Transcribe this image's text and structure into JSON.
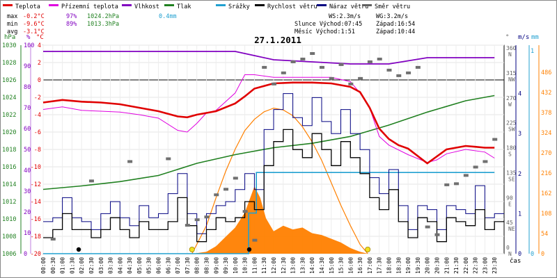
{
  "legend": [
    {
      "label": "Teplota",
      "color": "#e00000"
    },
    {
      "label": "Přízemní teplota",
      "color": "#e000e0"
    },
    {
      "label": "Vlhkost",
      "color": "#8000c0"
    },
    {
      "label": "Tlak",
      "color": "#208020"
    },
    {
      "label": "Srážky",
      "color": "#20a0d0"
    },
    {
      "label": "Rychlost větru",
      "color": "#000000"
    },
    {
      "label": "Náraz větru",
      "color": "#000080"
    },
    {
      "label": "Směr větru",
      "color": "#606060"
    }
  ],
  "stats": {
    "max_label": "max",
    "min_label": "min",
    "avg_label": "avg",
    "max_temp": "-0.2°C",
    "max_hum": "97%",
    "max_press": "1024.2hPa",
    "max_rain": "0.4mm",
    "min_temp": "-9.6°C",
    "min_hum": "89%",
    "min_press": "1013.3hPa",
    "avg_temp": "-3.1°C"
  },
  "wind_info": {
    "ws": "WS:2.3m/s",
    "wg": "WG:3.2m/s",
    "sun": "Slunce Východ:07:45",
    "sun_set": "Západ:16:54",
    "moon": "Měsíc  Východ:1:51",
    "moon_set": "Západ:10:44"
  },
  "title": "27.1.2011",
  "units": {
    "hpa": "hPa",
    "pct": "%",
    "degc": "°C",
    "deg": "°",
    "ms": "m/s",
    "mm": "mm",
    "time": "čas"
  },
  "colors": {
    "temp": "#e00000",
    "ground": "#e000e0",
    "hum": "#8000c0",
    "press": "#208020",
    "rain": "#20a0d0",
    "wind": "#000000",
    "gust": "#000080",
    "dir": "#707070",
    "solar": "#ff8000",
    "solar_area": "#ff8000"
  },
  "chart_data": {
    "type": "line",
    "title": "27.1.2011",
    "x_labels": [
      "00:00",
      "00:30",
      "01:00",
      "01:30",
      "02:00",
      "02:30",
      "03:00",
      "03:30",
      "04:00",
      "04:30",
      "05:00",
      "05:30",
      "06:00",
      "06:30",
      "07:00",
      "07:30",
      "08:00",
      "08:30",
      "09:00",
      "09:30",
      "10:00",
      "10:30",
      "11:00",
      "11:30",
      "12:00",
      "12:30",
      "13:00",
      "13:30",
      "14:00",
      "14:30",
      "15:00",
      "15:30",
      "16:00",
      "16:30",
      "17:00",
      "17:30",
      "18:00",
      "18:30",
      "19:00",
      "19:30",
      "20:00",
      "20:30",
      "21:00",
      "21:30",
      "22:00",
      "22:30",
      "23:00",
      "23:30"
    ],
    "axes": {
      "hpa": {
        "range": [
          1006,
          1030
        ],
        "ticks": [
          1006,
          1008,
          1010,
          1012,
          1014,
          1016,
          1018,
          1020,
          1022,
          1024,
          1026,
          1028,
          1030
        ]
      },
      "humidity_pct": {
        "range": [
          0,
          100
        ],
        "ticks": [
          0,
          10,
          20,
          30,
          40,
          50,
          60,
          70,
          80,
          90,
          100
        ]
      },
      "temp_c": {
        "range": [
          -20,
          4
        ],
        "ticks": [
          -20,
          -18,
          -16,
          -14,
          -12,
          -10,
          -8,
          -6,
          -4,
          -2,
          0,
          2,
          4
        ]
      },
      "wind_dir_deg": {
        "ticks": [
          {
            "v": 0,
            "t": "0 N"
          },
          {
            "v": 45,
            "t": "45 NE"
          },
          {
            "v": 90,
            "t": "90 E"
          },
          {
            "v": 135,
            "t": "135 SE"
          },
          {
            "v": 180,
            "t": "180 S"
          },
          {
            "v": 225,
            "t": "225 SW"
          },
          {
            "v": 270,
            "t": "270 W"
          },
          {
            "v": 315,
            "t": "315 NW"
          },
          {
            "v": 360,
            "t": "360 N"
          }
        ]
      },
      "wind_ms": {
        "range": [
          0,
          5
        ],
        "ticks": [
          {
            "v": 0,
            "t": "0"
          },
          {
            "v": 1,
            "t": "1"
          },
          {
            "v": 2,
            "t": "2"
          },
          {
            "v": 3,
            "t": "3"
          },
          {
            "v": 4,
            "t": "4"
          }
        ]
      },
      "rain_mm": {
        "range": [
          0,
          1
        ],
        "ticks": [
          {
            "v": 0,
            "t": "0"
          },
          {
            "v": 1,
            "t": "1"
          }
        ]
      },
      "solar": {
        "range": [
          0,
          540
        ],
        "ticks": [
          0,
          54,
          108,
          162,
          216,
          270,
          324,
          378,
          432,
          486
        ]
      }
    },
    "series": [
      {
        "name": "Teplota",
        "axis": "temp_c",
        "x": [
          0,
          1,
          2,
          3,
          4,
          5,
          6,
          7,
          7.5,
          8,
          9,
          10,
          10.5,
          11,
          12,
          13,
          14,
          15,
          16,
          16.5,
          17,
          17.5,
          18,
          18.5,
          19,
          20,
          21,
          21.5,
          22,
          22.5,
          23,
          23.5
        ],
        "y": [
          -2.6,
          -2.3,
          -2.5,
          -2.6,
          -2.8,
          -3.2,
          -3.6,
          -4.2,
          -4.3,
          -4.0,
          -3.6,
          -2.7,
          -1.9,
          -1.0,
          -0.4,
          -0.3,
          -0.3,
          -0.4,
          -0.8,
          -1.4,
          -3.2,
          -5.6,
          -6.8,
          -7.5,
          -7.9,
          -9.6,
          -8.0,
          -7.8,
          -7.6,
          -7.7,
          -7.8,
          -7.8
        ]
      },
      {
        "name": "Přízemní teplota",
        "axis": "temp_c",
        "x": [
          0,
          1,
          2,
          3,
          4,
          5,
          6,
          7,
          7.5,
          8,
          8.5,
          9,
          10,
          10.5,
          11,
          12,
          13,
          14,
          15,
          16,
          16.5,
          17,
          17.5,
          18,
          19,
          20,
          20.5,
          21,
          22,
          23,
          23.5
        ],
        "y": [
          -3.4,
          -3.1,
          -3.5,
          -3.6,
          -3.7,
          -4.0,
          -4.4,
          -5.8,
          -6.0,
          -5.0,
          -3.8,
          -3.5,
          -1.5,
          0.6,
          0.6,
          0.3,
          0.3,
          0.3,
          0.3,
          -0.2,
          -1.5,
          -3.2,
          -6.5,
          -7.5,
          -8.6,
          -9.5,
          -9.2,
          -8.5,
          -8.0,
          -8.3,
          -9.0
        ]
      },
      {
        "name": "Vlhkost",
        "axis": "humidity_pct",
        "x": [
          0,
          6,
          8,
          10,
          11,
          12,
          14,
          16,
          18,
          20,
          22,
          23.5
        ],
        "y": [
          97,
          97,
          97,
          97,
          95,
          93,
          92,
          91,
          91,
          94,
          94,
          94
        ]
      },
      {
        "name": "Tlak",
        "axis": "hpa",
        "x": [
          0,
          2,
          4,
          6,
          8,
          10,
          12,
          14,
          16,
          18,
          20,
          22,
          23.5
        ],
        "y": [
          1013.4,
          1013.8,
          1014.3,
          1015.0,
          1016.4,
          1017.4,
          1018.2,
          1018.7,
          1019.5,
          1020.8,
          1022.3,
          1023.6,
          1024.2
        ]
      },
      {
        "name": "Srážky",
        "axis": "rain_mm",
        "x": [
          0,
          10.7,
          10.7,
          11.1,
          11.1,
          23.5
        ],
        "y": [
          0,
          0,
          0.2,
          0.2,
          0.4,
          0.4
        ]
      },
      {
        "name": "Rychlost větru",
        "axis": "wind_ms",
        "x": [
          0,
          0.5,
          1,
          1.5,
          2,
          2.5,
          3,
          3.5,
          4,
          4.5,
          5,
          5.5,
          6,
          6.5,
          7,
          7.5,
          8,
          8.5,
          9,
          9.5,
          10,
          10.5,
          11,
          11.5,
          12,
          12.5,
          13,
          13.5,
          14,
          14.5,
          15,
          15.5,
          16,
          16.5,
          17,
          17.5,
          18,
          18.5,
          19,
          19.5,
          20,
          20.5,
          21,
          21.5,
          22,
          22.5,
          23,
          23.5
        ],
        "y": [
          0.4,
          0.6,
          1.0,
          0.6,
          0.6,
          0.4,
          0.6,
          0.9,
          0.6,
          0.4,
          0.8,
          0.6,
          0.6,
          0.8,
          1.4,
          0.7,
          0.3,
          0.6,
          0.9,
          0.8,
          0.9,
          1.3,
          1.1,
          2.2,
          2.8,
          3.1,
          2.6,
          2.4,
          3.0,
          2.6,
          2.2,
          2.8,
          2.4,
          2.0,
          1.4,
          1.1,
          1.6,
          0.8,
          0.4,
          0.9,
          0.8,
          0.3,
          0.9,
          0.8,
          0.7,
          1.1,
          0.6,
          0.8
        ]
      },
      {
        "name": "Náraz větru",
        "axis": "wind_ms",
        "x": [
          0,
          0.5,
          1,
          1.5,
          2,
          2.5,
          3,
          3.5,
          4,
          4.5,
          5,
          5.5,
          6,
          6.5,
          7,
          7.5,
          8,
          8.5,
          9,
          9.5,
          10,
          10.5,
          11,
          11.5,
          12,
          12.5,
          13,
          13.5,
          14,
          14.5,
          15,
          15.5,
          16,
          16.5,
          17,
          17.5,
          18,
          18.5,
          19,
          19.5,
          20,
          20.5,
          21,
          21.5,
          22,
          22.5,
          23,
          23.5
        ],
        "y": [
          0.8,
          0.9,
          1.4,
          0.9,
          0.8,
          0.6,
          1.0,
          1.3,
          0.9,
          0.7,
          1.2,
          0.9,
          1.0,
          1.5,
          2.0,
          1.0,
          0.5,
          1.0,
          1.2,
          1.3,
          1.6,
          2.0,
          1.6,
          3.1,
          3.6,
          4.0,
          3.4,
          3.2,
          3.9,
          3.3,
          3.0,
          3.6,
          3.0,
          2.6,
          1.9,
          1.5,
          2.1,
          1.2,
          0.6,
          1.2,
          1.1,
          0.6,
          1.2,
          1.1,
          1.0,
          1.7,
          0.9,
          1.0
        ]
      },
      {
        "name": "Směr větru",
        "axis": "wind_dir_deg",
        "x": [
          0.5,
          2.5,
          4.5,
          6.5,
          7.5,
          8,
          8.5,
          9,
          9.5,
          10,
          10.5,
          11,
          11.5,
          12,
          12.5,
          13,
          13.5,
          14,
          14.5,
          15,
          15.5,
          16,
          16.5,
          17,
          17.5,
          18,
          18.5,
          19,
          19.5,
          20,
          20.5,
          21,
          21.5,
          22,
          22.5,
          23,
          23.5
        ],
        "y": [
          20,
          125,
          160,
          165,
          45,
          55,
          60,
          100,
          110,
          130,
          70,
          18,
          330,
          300,
          320,
          340,
          345,
          355,
          330,
          310,
          335,
          300,
          310,
          340,
          345,
          325,
          315,
          320,
          330,
          42,
          28,
          118,
          120,
          135,
          150,
          160,
          200
        ]
      },
      {
        "name": "Sluneční záření",
        "axis": "solar",
        "x": [
          7.8,
          8.5,
          9,
          9.5,
          10,
          10.5,
          11,
          11.3,
          11.6,
          12,
          12.5,
          13,
          13.5,
          14,
          14.5,
          15,
          15.5,
          16,
          16.5,
          16.9
        ],
        "y": [
          0,
          5,
          20,
          45,
          70,
          110,
          180,
          150,
          95,
          60,
          75,
          65,
          70,
          55,
          50,
          40,
          30,
          15,
          5,
          0
        ]
      },
      {
        "name": "Teoretické záření",
        "axis": "solar",
        "x": [
          7.75,
          8.5,
          9,
          9.5,
          10,
          10.5,
          11,
          11.5,
          12,
          12.5,
          13,
          13.5,
          14,
          14.5,
          15,
          15.5,
          16,
          16.5,
          16.9
        ],
        "y": [
          0,
          75,
          150,
          220,
          280,
          330,
          360,
          380,
          390,
          385,
          370,
          340,
          300,
          250,
          190,
          130,
          75,
          25,
          0
        ]
      }
    ],
    "markers": [
      {
        "name": "sunrise",
        "x": 7.75,
        "y": 0
      },
      {
        "name": "sunset",
        "x": 16.9,
        "y": 0
      },
      {
        "name": "moon-set",
        "x": 10.73,
        "y": 0
      },
      {
        "name": "moon-rise",
        "x": 1.85,
        "y": 0
      }
    ]
  }
}
